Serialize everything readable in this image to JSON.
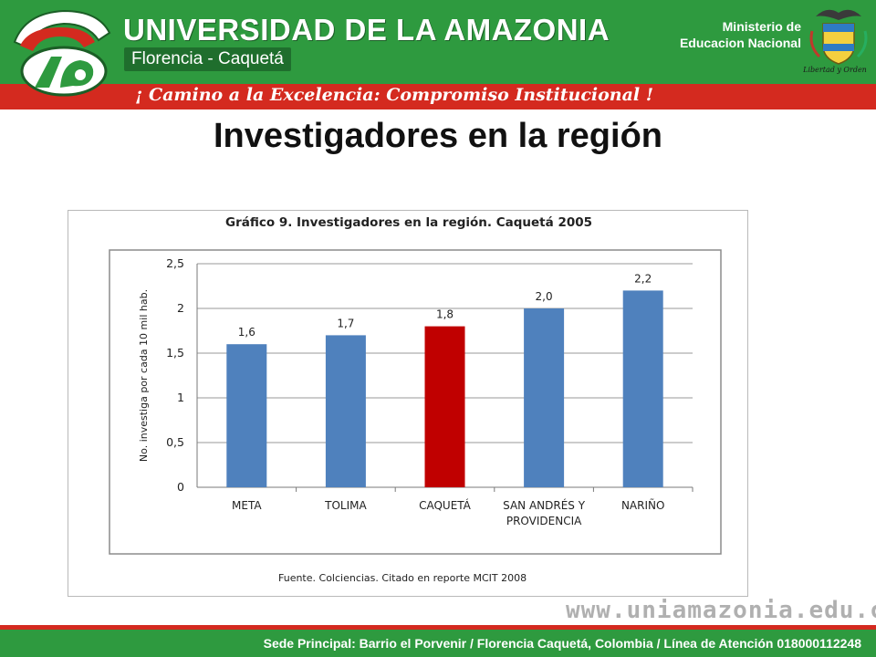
{
  "header": {
    "university": "UNIVERSIDAD DE LA AMAZONIA",
    "location": "Florencia - Caquetá",
    "slogan": "¡ Camino a la Excelencia: Compromiso Institucional !",
    "ministry_line1": "Ministerio de",
    "ministry_line2": "Educacion Nacional",
    "crest_caption": "Libertad y Orden"
  },
  "page_title": "Investigadores  en la región",
  "chart_data": {
    "type": "bar",
    "title": "Gráfico 9.  Investigadores en la región.  Caquetá 2005",
    "ylabel": "No. investiga por cada 10 mil hab.",
    "xlabel": "",
    "ylim": [
      0,
      2.5
    ],
    "yticks": [
      "0",
      "0,5",
      "1",
      "1,5",
      "2",
      "2,5"
    ],
    "ytick_values": [
      0,
      0.5,
      1,
      1.5,
      2,
      2.5
    ],
    "grid": true,
    "categories": [
      {
        "line1": "META",
        "line2": ""
      },
      {
        "line1": "TOLIMA",
        "line2": ""
      },
      {
        "line1": "CAQUETÁ",
        "line2": ""
      },
      {
        "line1": "SAN ANDRÉS Y",
        "line2": "PROVIDENCIA"
      },
      {
        "line1": "NARIÑO",
        "line2": ""
      }
    ],
    "values": [
      1.6,
      1.7,
      1.8,
      2.0,
      2.2
    ],
    "data_labels": [
      "1,6",
      "1,7",
      "1,8",
      "2,0",
      "2,2"
    ],
    "colors": [
      "#4f81bd",
      "#4f81bd",
      "#c00000",
      "#4f81bd",
      "#4f81bd"
    ],
    "source": "Fuente.  Colciencias.  Citado en reporte MCIT 2008"
  },
  "website": "www.uniamazonia.edu.co",
  "footer": "Sede Principal: Barrio el Porvenir  /  Florencia Caquetá, Colombia  /  Línea de Atención 018000112248"
}
